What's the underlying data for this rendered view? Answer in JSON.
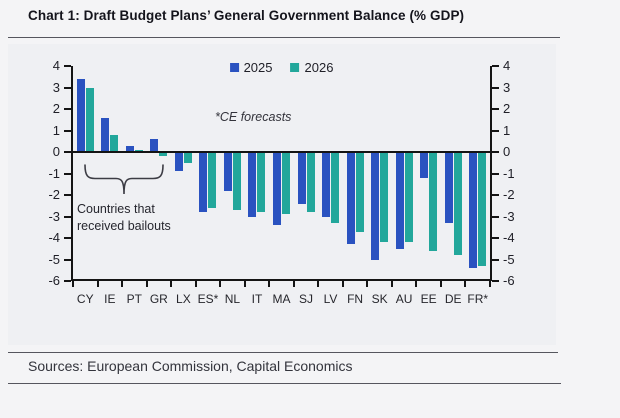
{
  "header": {
    "title": "Chart 1: Draft Budget Plans’ General Government Balance (% GDP)"
  },
  "annotations": {
    "ce_note": "*CE forecasts",
    "bailouts_line1": "Countries that",
    "bailouts_line2": "received bailouts",
    "bailout_bracket_categories": [
      "CY",
      "IE",
      "PT",
      "GR"
    ]
  },
  "footer": {
    "sources": "Sources: European Commission, Capital Economics"
  },
  "colors": {
    "series_2025": "#2a52c0",
    "series_2026": "#22a79b",
    "axis": "#141414",
    "page_background": "#f4f4f6",
    "plot_background": "#eff0f3"
  },
  "chart_data": {
    "type": "bar",
    "title": "Draft Budget Plans’ General Government Balance (% GDP)",
    "categories": [
      "CY",
      "IE",
      "PT",
      "GR",
      "LX",
      "ES*",
      "NL",
      "IT",
      "MA",
      "SJ",
      "LV",
      "FN",
      "SK",
      "AU",
      "EE",
      "DE",
      "FR*"
    ],
    "series": [
      {
        "name": "2025",
        "color": "#2a52c0",
        "values": [
          3.4,
          1.6,
          0.3,
          0.6,
          -0.9,
          -2.8,
          -1.8,
          -3.0,
          -3.4,
          -2.4,
          -3.0,
          -4.3,
          -5.0,
          -4.5,
          -1.2,
          -3.3,
          -5.4
        ]
      },
      {
        "name": "2026",
        "color": "#22a79b",
        "values": [
          3.0,
          0.8,
          0.1,
          -0.2,
          -0.5,
          -2.6,
          -2.7,
          -2.8,
          -2.9,
          -2.8,
          -3.3,
          -3.7,
          -4.2,
          -4.2,
          -4.6,
          -4.8,
          -5.3
        ]
      }
    ],
    "ylabel": "% GDP",
    "ylim": [
      -6,
      4
    ],
    "ytick_step": 1,
    "grid": false,
    "dual_y_axis": true,
    "legend_position": "top-center"
  }
}
